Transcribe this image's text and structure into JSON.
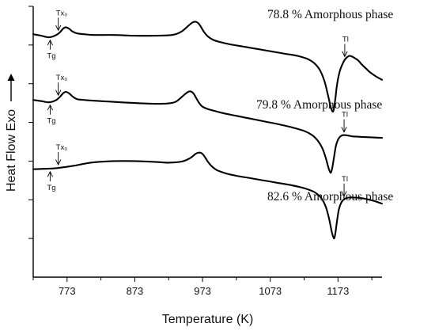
{
  "chart_data": {
    "type": "line",
    "xlabel": "Temperature (K)",
    "ylabel": "Heat Flow Exo",
    "xlim": [
      723,
      1238
    ],
    "xticks": [
      773,
      873,
      973,
      1073,
      1173
    ],
    "ylim": [
      0,
      7
    ],
    "grid": false,
    "series": [
      {
        "name": "78.8 % Amorphous phase",
        "x": [
          723,
          735,
          745,
          752,
          758,
          763,
          767,
          771,
          776,
          781,
          788,
          798,
          813,
          843,
          873,
          903,
          923,
          935,
          943,
          951,
          958,
          963,
          967,
          971,
          975,
          981,
          988,
          998,
          1013,
          1033,
          1053,
          1073,
          1093,
          1113,
          1128,
          1138,
          1146,
          1153,
          1158,
          1162,
          1165,
          1167,
          1169,
          1171,
          1173,
          1175,
          1177,
          1180,
          1183,
          1186,
          1190,
          1194,
          1198,
          1203,
          1208,
          1214,
          1220,
          1228,
          1238
        ],
        "y": [
          6.28,
          6.24,
          6.2,
          6.22,
          6.27,
          6.34,
          6.42,
          6.46,
          6.42,
          6.35,
          6.3,
          6.28,
          6.26,
          6.26,
          6.24,
          6.24,
          6.25,
          6.29,
          6.36,
          6.48,
          6.58,
          6.6,
          6.56,
          6.46,
          6.34,
          6.22,
          6.14,
          6.08,
          6.02,
          5.96,
          5.9,
          5.84,
          5.78,
          5.72,
          5.64,
          5.53,
          5.36,
          5.07,
          4.72,
          4.42,
          4.28,
          4.35,
          4.6,
          4.9,
          5.12,
          5.28,
          5.4,
          5.52,
          5.62,
          5.68,
          5.72,
          5.7,
          5.66,
          5.6,
          5.5,
          5.4,
          5.3,
          5.2,
          5.1
        ]
      },
      {
        "name": "79.8 % Amorphous phase",
        "x": [
          723,
          735,
          745,
          752,
          758,
          763,
          767,
          771,
          776,
          781,
          788,
          798,
          813,
          843,
          873,
          903,
          923,
          933,
          940,
          947,
          953,
          957,
          960,
          963,
          967,
          972,
          980,
          990,
          1003,
          1023,
          1043,
          1063,
          1083,
          1103,
          1123,
          1135,
          1143,
          1150,
          1155,
          1159,
          1162,
          1164,
          1166,
          1168,
          1170,
          1173,
          1176,
          1180,
          1184,
          1188,
          1194,
          1202,
          1212,
          1225,
          1238
        ],
        "y": [
          4.58,
          4.55,
          4.52,
          4.54,
          4.59,
          4.67,
          4.75,
          4.79,
          4.75,
          4.67,
          4.6,
          4.58,
          4.56,
          4.53,
          4.5,
          4.48,
          4.49,
          4.53,
          4.62,
          4.73,
          4.8,
          4.79,
          4.74,
          4.65,
          4.53,
          4.42,
          4.35,
          4.3,
          4.24,
          4.17,
          4.1,
          4.03,
          3.96,
          3.88,
          3.78,
          3.67,
          3.53,
          3.33,
          3.08,
          2.82,
          2.7,
          2.78,
          2.97,
          3.2,
          3.4,
          3.55,
          3.63,
          3.67,
          3.67,
          3.66,
          3.64,
          3.63,
          3.62,
          3.61,
          3.6
        ]
      },
      {
        "name": "82.6 % Amorphous phase",
        "x": [
          723,
          738,
          753,
          768,
          783,
          798,
          813,
          843,
          873,
          903,
          923,
          943,
          955,
          963,
          968,
          972,
          976,
          981,
          987,
          995,
          1008,
          1023,
          1043,
          1063,
          1083,
          1103,
          1123,
          1138,
          1148,
          1155,
          1160,
          1164,
          1167,
          1169,
          1171,
          1173,
          1175,
          1178,
          1181,
          1185,
          1190,
          1196,
          1203,
          1212,
          1222,
          1230,
          1238
        ],
        "y": [
          2.79,
          2.8,
          2.81,
          2.84,
          2.88,
          2.93,
          2.97,
          3.0,
          3.0,
          2.98,
          2.96,
          2.99,
          3.08,
          3.19,
          3.22,
          3.2,
          3.12,
          2.98,
          2.86,
          2.76,
          2.68,
          2.62,
          2.56,
          2.5,
          2.44,
          2.38,
          2.3,
          2.2,
          2.05,
          1.82,
          1.5,
          1.16,
          1.0,
          1.12,
          1.38,
          1.62,
          1.8,
          1.93,
          2.0,
          2.04,
          2.06,
          2.06,
          2.05,
          2.03,
          1.99,
          1.95,
          1.9
        ]
      }
    ],
    "markers": [
      {
        "series": 0,
        "label": "Tg",
        "x": 748
      },
      {
        "series": 0,
        "label": "Tx₀",
        "x": 760
      },
      {
        "series": 0,
        "label": "Tl",
        "x": 1183
      },
      {
        "series": 1,
        "label": "Tg",
        "x": 748
      },
      {
        "series": 1,
        "label": "Tx₀",
        "x": 760
      },
      {
        "series": 1,
        "label": "Tl",
        "x": 1182
      },
      {
        "series": 2,
        "label": "Tg",
        "x": 748
      },
      {
        "series": 2,
        "label": "Tx₀",
        "x": 760
      },
      {
        "series": 2,
        "label": "Tl",
        "x": 1182
      }
    ]
  }
}
